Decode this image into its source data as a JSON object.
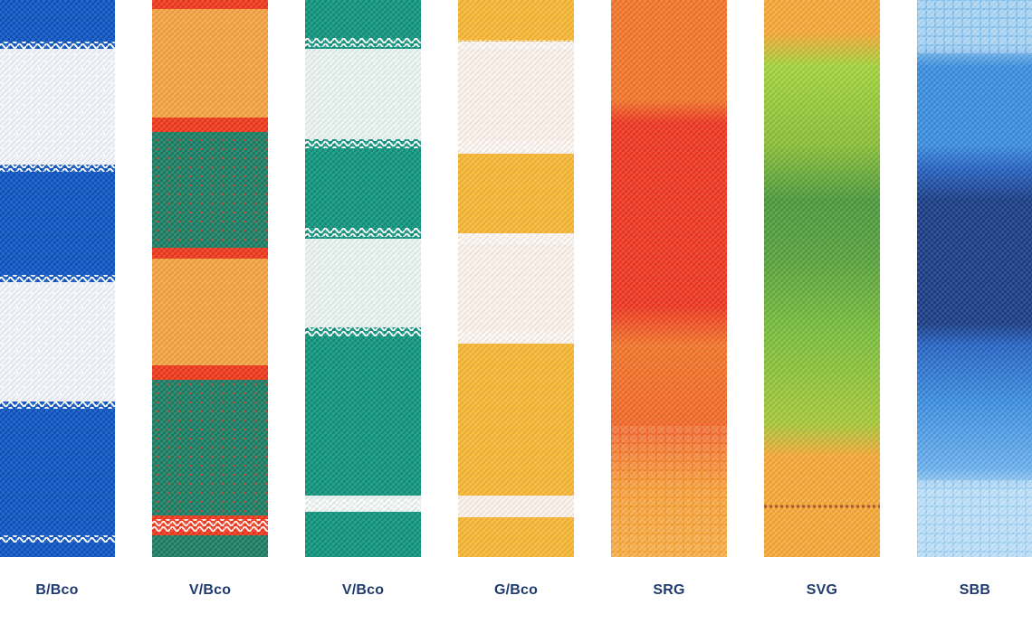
{
  "swatches": [
    {
      "code": "B/Bco",
      "colors": [
        "#0f56c2",
        "#f2f4fb"
      ]
    },
    {
      "code": "V/Bco",
      "colors": [
        "#f4a444",
        "#1f7f66",
        "#ef3a1f"
      ]
    },
    {
      "code": "V/Bco",
      "colors": [
        "#12957f",
        "#e9f3f0"
      ]
    },
    {
      "code": "G/Bco",
      "colors": [
        "#f7b737",
        "#fbf1ea"
      ]
    },
    {
      "code": "SRG",
      "colors": [
        "#f3772d",
        "#ee3a24",
        "#f79a2e"
      ]
    },
    {
      "code": "SVG",
      "colors": [
        "#f5a93b",
        "#9fcf3c",
        "#4e9a3f",
        "#a35a2a"
      ]
    },
    {
      "code": "SBB",
      "colors": [
        "#8cc6f0",
        "#3e8fe0",
        "#1c3f87"
      ]
    }
  ]
}
